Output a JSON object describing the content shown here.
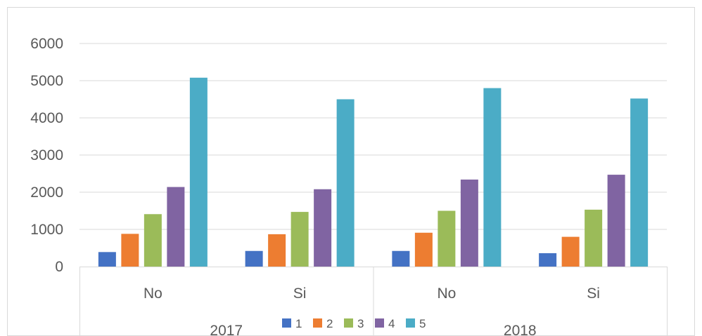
{
  "chart_data": {
    "type": "bar",
    "groups": [
      {
        "label": "2017",
        "categories": [
          "No",
          "Si"
        ]
      },
      {
        "label": "2018",
        "categories": [
          "No",
          "Si"
        ]
      }
    ],
    "categories": [
      "No",
      "Si",
      "No",
      "Si"
    ],
    "series": [
      {
        "name": "1",
        "color": "#4472C4",
        "values": [
          390,
          420,
          420,
          360
        ]
      },
      {
        "name": "2",
        "color": "#ED7D31",
        "values": [
          880,
          870,
          910,
          800
        ]
      },
      {
        "name": "3",
        "color": "#9BBB59",
        "values": [
          1410,
          1470,
          1500,
          1530
        ]
      },
      {
        "name": "4",
        "color": "#8064A2",
        "values": [
          2140,
          2080,
          2340,
          2470
        ]
      },
      {
        "name": "5",
        "color": "#4BACC6",
        "values": [
          5080,
          4500,
          4800,
          4520
        ]
      }
    ],
    "ylim": [
      0,
      6000
    ],
    "yticks": [
      "0",
      "1000",
      "2000",
      "3000",
      "4000",
      "5000",
      "6000"
    ],
    "grid": true,
    "legend": "bottom"
  }
}
